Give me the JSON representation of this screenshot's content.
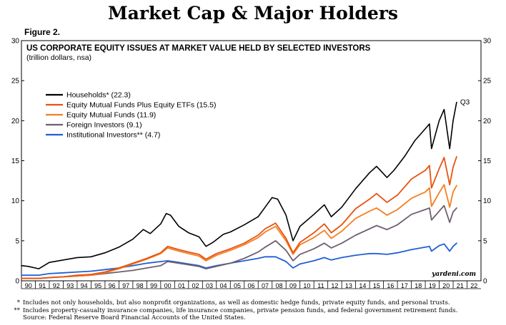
{
  "page": {
    "title": "Market Cap & Major Holders",
    "figure_label": "Figure 2.",
    "watermark": "yardeni.com",
    "footnotes": [
      {
        "mark": "*",
        "text": "Includes not only households, but also nonprofit organizations, as well as domestic hedge funds, private equity funds, and personal trusts."
      },
      {
        "mark": "**",
        "text": "Includes property-casualty insurance companies, life insurance companies, private pension funds, and federal government retirement funds."
      },
      {
        "mark": "",
        "text": "Source: Federal Reserve Board Financial Accounts of the United States."
      }
    ]
  },
  "chart_data": {
    "type": "line",
    "title": "US CORPORATE EQUITY ISSUES AT MARKET VALUE HELD BY SELECTED INVESTORS",
    "subtitle": "(trillion dollars, nsa)",
    "xlabel": "",
    "ylabel": "",
    "ylim": [
      0,
      30
    ],
    "xlim": [
      1989.5,
      2022.5
    ],
    "yticks": [
      0,
      5,
      10,
      15,
      20,
      25,
      30
    ],
    "xtick_labels": [
      "90",
      "91",
      "92",
      "93",
      "94",
      "95",
      "96",
      "97",
      "98",
      "99",
      "00",
      "01",
      "02",
      "03",
      "04",
      "05",
      "06",
      "07",
      "08",
      "09",
      "10",
      "11",
      "12",
      "13",
      "14",
      "15",
      "16",
      "17",
      "18",
      "19",
      "20",
      "21",
      "22"
    ],
    "xtick_years": [
      1990,
      1991,
      1992,
      1993,
      1994,
      1995,
      1996,
      1997,
      1998,
      1999,
      2000,
      2001,
      2002,
      2003,
      2004,
      2005,
      2006,
      2007,
      2008,
      2009,
      2010,
      2011,
      2012,
      2013,
      2014,
      2015,
      2016,
      2017,
      2018,
      2019,
      2020,
      2021,
      2022
    ],
    "legend_position": "top-left",
    "annotation": "Q3",
    "grid": false,
    "series": [
      {
        "name": "Households* (22.3)",
        "color": "#000000",
        "x": [
          1989.5,
          1990.0,
          1990.75,
          1991.5,
          1992.5,
          1993.5,
          1994.5,
          1995.5,
          1996.5,
          1997.5,
          1998.25,
          1998.75,
          1999.5,
          1999.9,
          2000.2,
          2000.8,
          2001.5,
          2002.25,
          2002.75,
          2003.25,
          2004.0,
          2004.5,
          2005.5,
          2006.5,
          2007.0,
          2007.5,
          2007.9,
          2008.5,
          2009.0,
          2009.5,
          2010.5,
          2011.25,
          2011.75,
          2012.5,
          2013.5,
          2014.5,
          2015.0,
          2015.75,
          2016.25,
          2017.0,
          2017.75,
          2018.5,
          2018.8,
          2018.95,
          2019.5,
          2019.85,
          2020.25,
          2020.5,
          2020.75
        ],
        "y": [
          1.9,
          1.8,
          1.5,
          2.3,
          2.6,
          2.9,
          3.0,
          3.5,
          4.2,
          5.2,
          6.4,
          5.9,
          7.1,
          8.4,
          8.2,
          6.8,
          6.0,
          5.5,
          4.3,
          4.8,
          5.8,
          6.1,
          7.0,
          8.0,
          9.2,
          10.4,
          10.2,
          8.2,
          5.0,
          6.8,
          8.3,
          9.5,
          8.0,
          9.2,
          11.5,
          13.5,
          14.3,
          12.9,
          13.8,
          15.5,
          17.5,
          19.0,
          19.6,
          16.5,
          20.0,
          21.4,
          16.5,
          20.0,
          22.3
        ]
      },
      {
        "name": "Equity Mutual Funds Plus Equity ETFs (15.5)",
        "color": "#e8520e",
        "x": [
          1989.5,
          1990.75,
          1991.5,
          1992.5,
          1993.5,
          1994.5,
          1995.5,
          1996.5,
          1997.5,
          1998.5,
          1999.5,
          2000.0,
          2000.8,
          2001.5,
          2002.25,
          2002.75,
          2003.5,
          2004.5,
          2005.5,
          2006.5,
          2007.0,
          2007.75,
          2008.5,
          2009.0,
          2009.5,
          2010.5,
          2011.25,
          2011.75,
          2012.5,
          2013.5,
          2014.5,
          2015.0,
          2015.75,
          2016.5,
          2017.5,
          2018.5,
          2018.8,
          2018.95,
          2019.5,
          2019.85,
          2020.25,
          2020.5,
          2020.75
        ],
        "y": [
          0.3,
          0.3,
          0.4,
          0.5,
          0.7,
          0.8,
          1.1,
          1.6,
          2.2,
          2.8,
          3.5,
          4.3,
          3.9,
          3.6,
          3.3,
          2.7,
          3.4,
          4.0,
          4.7,
          5.7,
          6.5,
          7.2,
          5.3,
          3.5,
          4.8,
          6.0,
          7.1,
          6.0,
          7.0,
          9.0,
          10.2,
          10.9,
          9.8,
          10.7,
          12.7,
          13.8,
          14.4,
          11.6,
          14.0,
          15.4,
          12.0,
          14.2,
          15.5
        ]
      },
      {
        "name": "Equity Mutual Funds (11.9)",
        "color": "#f57e20",
        "x": [
          1989.5,
          1990.75,
          1991.5,
          1992.5,
          1993.5,
          1994.5,
          1995.5,
          1996.5,
          1997.5,
          1998.5,
          1999.5,
          2000.0,
          2000.8,
          2001.5,
          2002.25,
          2002.75,
          2003.5,
          2004.5,
          2005.5,
          2006.5,
          2007.0,
          2007.75,
          2008.5,
          2009.0,
          2009.5,
          2010.5,
          2011.25,
          2011.75,
          2012.5,
          2013.5,
          2014.5,
          2015.0,
          2015.75,
          2016.5,
          2017.5,
          2018.5,
          2018.8,
          2018.95,
          2019.5,
          2019.85,
          2020.25,
          2020.5,
          2020.75
        ],
        "y": [
          0.3,
          0.3,
          0.4,
          0.5,
          0.6,
          0.7,
          1.0,
          1.5,
          2.1,
          2.7,
          3.4,
          4.1,
          3.7,
          3.4,
          3.1,
          2.5,
          3.2,
          3.8,
          4.5,
          5.4,
          6.1,
          6.8,
          5.0,
          3.3,
          4.5,
          5.4,
          6.3,
          5.3,
          6.2,
          7.8,
          8.7,
          9.1,
          8.2,
          8.9,
          10.3,
          11.1,
          11.6,
          9.3,
          11.0,
          12.0,
          9.2,
          11.1,
          11.9
        ]
      },
      {
        "name": "Foreign Investors (9.1)",
        "color": "#6e5f6e",
        "x": [
          1989.5,
          1990.75,
          1991.5,
          1992.5,
          1993.5,
          1994.5,
          1995.5,
          1996.5,
          1997.5,
          1998.5,
          1999.5,
          2000.0,
          2000.8,
          2001.5,
          2002.25,
          2002.75,
          2003.5,
          2004.5,
          2005.5,
          2006.5,
          2007.0,
          2007.75,
          2008.5,
          2009.0,
          2009.5,
          2010.5,
          2011.25,
          2011.75,
          2012.5,
          2013.5,
          2014.5,
          2015.0,
          2015.75,
          2016.5,
          2017.5,
          2018.5,
          2018.8,
          2018.95,
          2019.5,
          2019.85,
          2020.25,
          2020.5,
          2020.75
        ],
        "y": [
          0.3,
          0.3,
          0.4,
          0.5,
          0.6,
          0.7,
          0.9,
          1.1,
          1.3,
          1.6,
          1.9,
          2.4,
          2.2,
          2.0,
          1.8,
          1.5,
          1.8,
          2.2,
          2.8,
          3.6,
          4.2,
          5.0,
          3.8,
          2.5,
          3.3,
          4.0,
          4.7,
          4.1,
          4.7,
          5.7,
          6.5,
          6.9,
          6.4,
          7.0,
          8.3,
          8.9,
          9.1,
          7.6,
          8.7,
          9.4,
          7.3,
          8.6,
          9.1
        ]
      },
      {
        "name": "Institutional Investors** (4.7)",
        "color": "#1f5fd6",
        "x": [
          1989.5,
          1990.75,
          1991.5,
          1992.5,
          1993.5,
          1994.5,
          1995.5,
          1996.5,
          1997.5,
          1998.5,
          1999.5,
          2000.0,
          2000.8,
          2001.5,
          2002.25,
          2002.75,
          2003.5,
          2004.5,
          2005.5,
          2006.5,
          2007.0,
          2007.75,
          2008.5,
          2009.0,
          2009.5,
          2010.5,
          2011.25,
          2011.75,
          2012.5,
          2013.5,
          2014.5,
          2015.0,
          2015.75,
          2016.5,
          2017.5,
          2018.5,
          2018.8,
          2018.95,
          2019.5,
          2019.85,
          2020.25,
          2020.5,
          2020.75
        ],
        "y": [
          0.7,
          0.7,
          0.9,
          1.0,
          1.1,
          1.2,
          1.4,
          1.6,
          1.9,
          2.2,
          2.4,
          2.5,
          2.3,
          2.1,
          1.9,
          1.6,
          1.9,
          2.2,
          2.5,
          2.8,
          3.0,
          3.0,
          2.4,
          1.6,
          2.1,
          2.5,
          2.9,
          2.6,
          2.9,
          3.2,
          3.4,
          3.4,
          3.3,
          3.5,
          3.9,
          4.2,
          4.3,
          3.7,
          4.4,
          4.6,
          3.7,
          4.3,
          4.7
        ]
      }
    ]
  }
}
